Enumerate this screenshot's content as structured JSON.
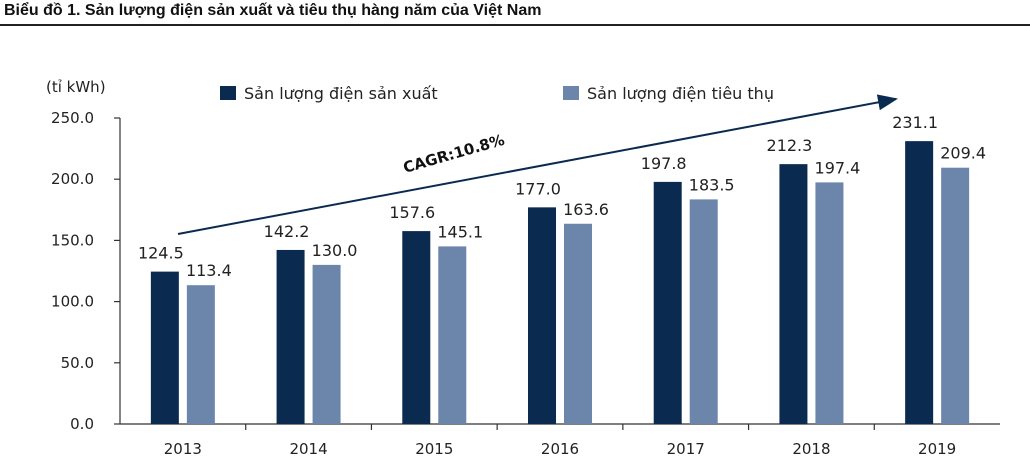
{
  "page_title": "Biểu đồ 1. Sản lượng điện sản xuất và tiêu thụ hàng năm của Việt Nam",
  "chart_data": {
    "type": "bar",
    "title": "Biểu đồ 1. Sản lượng điện sản xuất và tiêu thụ hàng năm của Việt Nam",
    "unit_label": "(tỉ kWh)",
    "categories": [
      "2013",
      "2014",
      "2015",
      "2016",
      "2017",
      "2018",
      "2019"
    ],
    "series": [
      {
        "name": "Sản lượng điện sản xuất",
        "color": "#0b2a4f",
        "values": [
          124.5,
          142.2,
          157.6,
          177.0,
          197.8,
          212.3,
          231.1
        ],
        "labels": [
          "124.5",
          "142.2",
          "157.6",
          "177.0",
          "197.8",
          "212.3",
          "231.1"
        ]
      },
      {
        "name": "Sản lượng điện tiêu thụ",
        "color": "#6b86aa",
        "values": [
          113.4,
          130.0,
          145.1,
          163.6,
          183.5,
          197.4,
          209.4
        ],
        "labels": [
          "113.4",
          "130.0",
          "145.1",
          "163.6",
          "183.5",
          "197.4",
          "209.4"
        ]
      }
    ],
    "ylim": [
      0,
      250
    ],
    "yticks": [
      "0.0",
      "50.0",
      "100.0",
      "150.0",
      "200.0",
      "250.0"
    ],
    "legend_position": "top",
    "grid": false,
    "annotation": "CAGR:10.8%"
  }
}
